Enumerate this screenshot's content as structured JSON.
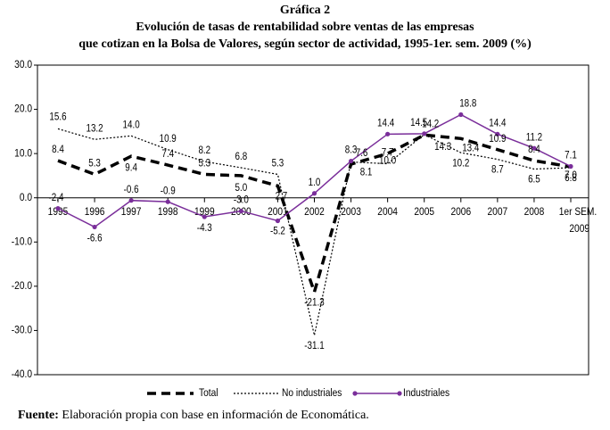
{
  "title_line1": "Gráfica 2",
  "title_line2": "Evolución de tasas de rentabilidad sobre ventas de las empresas",
  "title_line3": "que cotizan en la Bolsa de Valores, según sector de actividad, 1995-1er. sem. 2009 (%)",
  "source_label": "Fuente:",
  "source_text": "Elaboración propia con base en información de Economática.",
  "chart_data": {
    "type": "line",
    "categories": [
      "1995",
      "1996",
      "1997",
      "1998",
      "1999",
      "2000",
      "2001",
      "2002",
      "2003",
      "2004",
      "2005",
      "2006",
      "2007",
      "2008",
      "1er SEM. 2009"
    ],
    "ylim": [
      -40,
      30
    ],
    "yticks": [
      "30.0",
      "20.0",
      "10.0",
      "0.0",
      "-10.0",
      "-20.0",
      "-30.0",
      "-40.0"
    ],
    "ytick_values": [
      30,
      20,
      10,
      0,
      -10,
      -20,
      -30,
      -40
    ],
    "series": [
      {
        "name": "Total",
        "style": "dashed-thick",
        "color": "#000000",
        "values": [
          8.4,
          5.3,
          9.4,
          7.4,
          5.3,
          5.0,
          2.7,
          -21.3,
          7.6,
          10.0,
          14.2,
          13.4,
          10.9,
          8.4,
          7.0
        ],
        "labels": [
          "8.4",
          "5.3",
          "9.4",
          "7.4",
          "5.3",
          "5.0",
          "2.7",
          "-21.3",
          "7.6",
          "10.0",
          "14.2",
          "13.4",
          "10.9",
          "8.4",
          "7.0"
        ]
      },
      {
        "name": "No industriales",
        "style": "dotted",
        "color": "#000000",
        "values": [
          15.6,
          13.2,
          14.0,
          10.9,
          8.2,
          6.8,
          5.3,
          -31.1,
          8.1,
          7.7,
          14.3,
          10.2,
          8.7,
          6.5,
          6.8
        ],
        "labels": [
          "15.6",
          "13.2",
          "14.0",
          "10.9",
          "8.2",
          "6.8",
          "5.3",
          "-31.1",
          "8.1",
          "7.7",
          "14.3",
          "10.2",
          "8.7",
          "6.5",
          "6.8"
        ]
      },
      {
        "name": "Industriales",
        "style": "solid-markers",
        "color": "#7a2e9a",
        "values": [
          -2.4,
          -6.6,
          -0.6,
          -0.9,
          -4.3,
          -3.0,
          -5.2,
          1.0,
          8.3,
          14.4,
          14.5,
          18.8,
          14.4,
          11.2,
          7.1
        ],
        "labels": [
          "-2.4",
          "-6.6",
          "-0.6",
          "-0.9",
          "-4.3",
          "-3.0",
          "-5.2",
          "1.0",
          "8.3",
          "14.4",
          "14.5",
          "18.8",
          "14.4",
          "11.2",
          "7.1"
        ]
      }
    ],
    "legend": [
      "Total",
      "No industriales",
      "Industriales"
    ],
    "legend_position": "bottom"
  }
}
